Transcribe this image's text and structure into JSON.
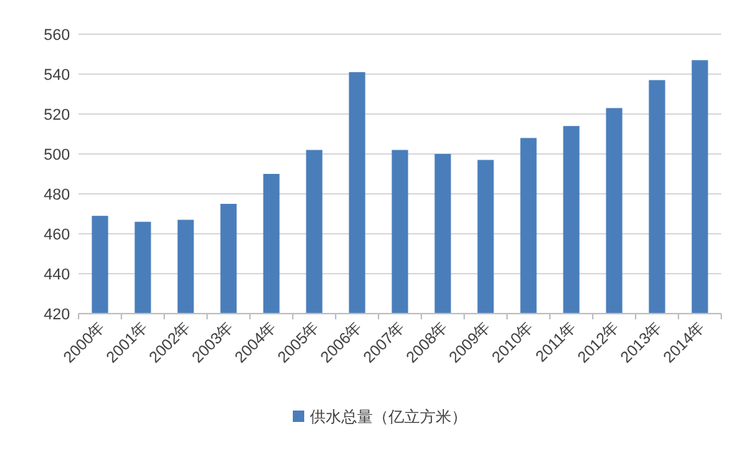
{
  "chart_data": {
    "type": "bar",
    "categories": [
      "2000年",
      "2001年",
      "2002年",
      "2003年",
      "2004年",
      "2005年",
      "2006年",
      "2007年",
      "2008年",
      "2009年",
      "2010年",
      "2011年",
      "2012年",
      "2013年",
      "2014年"
    ],
    "series": [
      {
        "name": "供水总量（亿立方米）",
        "color": "#4a7ebb",
        "values": [
          469,
          466,
          467,
          475,
          490,
          502,
          541,
          502,
          500,
          497,
          508,
          514,
          523,
          537,
          547
        ]
      }
    ],
    "ylim": [
      420,
      560
    ],
    "yticks": [
      420,
      440,
      460,
      480,
      500,
      520,
      540,
      560
    ],
    "grid": "y",
    "legend": "bottom"
  }
}
